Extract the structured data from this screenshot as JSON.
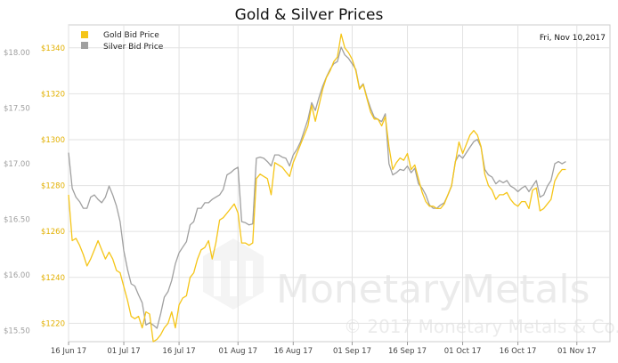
{
  "chart_data": {
    "type": "line",
    "title": "Gold & Silver Prices",
    "date_label": "Fri, Nov 10,2017",
    "watermark": {
      "brand": "MonetaryMetals",
      "copyright": "© 2017 Monetary Metals & Co."
    },
    "legend": {
      "placement": "top-left"
    },
    "x_ticks": [
      "16 Jun 17",
      "01 Jul 17",
      "16 Jul 17",
      "01 Aug 17",
      "16 Aug 17",
      "01 Sep 17",
      "16 Sep 17",
      "01 Oct 17",
      "16 Oct 17",
      "01 Nov 17"
    ],
    "x_tick_days": [
      0,
      15,
      30,
      46,
      61,
      77,
      92,
      107,
      122,
      138
    ],
    "xlim_days": [
      0,
      147
    ],
    "grid": true,
    "series": [
      {
        "name": "Gold Bid Price",
        "axis": "left",
        "color": "#f5c518",
        "ylim": [
          1212,
          1350
        ],
        "y_ticks": [
          "$1220",
          "$1240",
          "$1260",
          "$1280",
          "$1300",
          "$1320",
          "$1340"
        ],
        "y_tick_values": [
          1220,
          1240,
          1260,
          1280,
          1300,
          1320,
          1340
        ],
        "points": [
          [
            0,
            1276
          ],
          [
            1,
            1256
          ],
          [
            2,
            1257
          ],
          [
            3,
            1254
          ],
          [
            4,
            1250
          ],
          [
            5,
            1245
          ],
          [
            6,
            1248
          ],
          [
            7,
            1252
          ],
          [
            8,
            1256
          ],
          [
            9,
            1252
          ],
          [
            10,
            1248
          ],
          [
            11,
            1251
          ],
          [
            12,
            1248
          ],
          [
            13,
            1243
          ],
          [
            14,
            1242
          ],
          [
            15,
            1236
          ],
          [
            16,
            1230
          ],
          [
            17,
            1223
          ],
          [
            18,
            1222
          ],
          [
            19,
            1223
          ],
          [
            20,
            1218
          ],
          [
            21,
            1225
          ],
          [
            22,
            1224
          ],
          [
            23,
            1212
          ],
          [
            24,
            1213
          ],
          [
            25,
            1215
          ],
          [
            26,
            1218
          ],
          [
            27,
            1220
          ],
          [
            28,
            1225
          ],
          [
            29,
            1218
          ],
          [
            30,
            1228
          ],
          [
            31,
            1231
          ],
          [
            32,
            1232
          ],
          [
            33,
            1240
          ],
          [
            34,
            1242
          ],
          [
            35,
            1248
          ],
          [
            36,
            1252
          ],
          [
            37,
            1253
          ],
          [
            38,
            1256
          ],
          [
            39,
            1248
          ],
          [
            40,
            1255
          ],
          [
            41,
            1265
          ],
          [
            42,
            1266
          ],
          [
            43,
            1268
          ],
          [
            44,
            1270
          ],
          [
            45,
            1272
          ],
          [
            46,
            1268
          ],
          [
            47,
            1255
          ],
          [
            48,
            1255
          ],
          [
            49,
            1254
          ],
          [
            50,
            1255
          ],
          [
            51,
            1283
          ],
          [
            52,
            1285
          ],
          [
            53,
            1284
          ],
          [
            54,
            1283
          ],
          [
            55,
            1276
          ],
          [
            56,
            1290
          ],
          [
            57,
            1289
          ],
          [
            58,
            1288
          ],
          [
            59,
            1286
          ],
          [
            60,
            1284
          ],
          [
            61,
            1290
          ],
          [
            62,
            1294
          ],
          [
            63,
            1298
          ],
          [
            64,
            1302
          ],
          [
            65,
            1306
          ],
          [
            66,
            1315
          ],
          [
            67,
            1308
          ],
          [
            68,
            1315
          ],
          [
            69,
            1322
          ],
          [
            70,
            1327
          ],
          [
            71,
            1330
          ],
          [
            72,
            1334
          ],
          [
            73,
            1336
          ],
          [
            74,
            1346
          ],
          [
            75,
            1340
          ],
          [
            76,
            1338
          ],
          [
            77,
            1335
          ],
          [
            78,
            1330
          ],
          [
            79,
            1322
          ],
          [
            80,
            1324
          ],
          [
            81,
            1318
          ],
          [
            82,
            1312
          ],
          [
            83,
            1309
          ],
          [
            84,
            1309
          ],
          [
            85,
            1306
          ],
          [
            86,
            1310
          ],
          [
            87,
            1297
          ],
          [
            88,
            1287
          ],
          [
            89,
            1290
          ],
          [
            90,
            1292
          ],
          [
            91,
            1291
          ],
          [
            92,
            1294
          ],
          [
            93,
            1287
          ],
          [
            94,
            1289
          ],
          [
            95,
            1283
          ],
          [
            96,
            1277
          ],
          [
            97,
            1273
          ],
          [
            98,
            1271
          ],
          [
            99,
            1271
          ],
          [
            100,
            1270
          ],
          [
            101,
            1270
          ],
          [
            102,
            1272
          ],
          [
            103,
            1276
          ],
          [
            104,
            1280
          ],
          [
            105,
            1290
          ],
          [
            106,
            1299
          ],
          [
            107,
            1294
          ],
          [
            108,
            1298
          ],
          [
            109,
            1302
          ],
          [
            110,
            1304
          ],
          [
            111,
            1302
          ],
          [
            112,
            1297
          ],
          [
            113,
            1285
          ],
          [
            114,
            1280
          ],
          [
            115,
            1278
          ],
          [
            116,
            1274
          ],
          [
            117,
            1276
          ],
          [
            118,
            1276
          ],
          [
            119,
            1277
          ],
          [
            120,
            1274
          ],
          [
            121,
            1272
          ],
          [
            122,
            1271
          ],
          [
            123,
            1273
          ],
          [
            124,
            1273
          ],
          [
            125,
            1270
          ],
          [
            126,
            1278
          ],
          [
            127,
            1279
          ],
          [
            128,
            1269
          ],
          [
            129,
            1270
          ],
          [
            130,
            1272
          ],
          [
            131,
            1274
          ],
          [
            132,
            1282
          ],
          [
            133,
            1285
          ],
          [
            134,
            1287
          ],
          [
            135,
            1287
          ]
        ]
      },
      {
        "name": "Silver Bid Price",
        "axis": "right",
        "color": "#a0a0a0",
        "ylim": [
          15.4,
          18.25
        ],
        "y_ticks": [
          "$15.50",
          "$16.00",
          "$16.50",
          "$17.00",
          "$17.50",
          "$18.00"
        ],
        "y_tick_values": [
          15.5,
          16.0,
          16.5,
          17.0,
          17.5,
          18.0
        ],
        "points": [
          [
            0,
            17.1
          ],
          [
            1,
            16.78
          ],
          [
            2,
            16.7
          ],
          [
            3,
            16.66
          ],
          [
            4,
            16.6
          ],
          [
            5,
            16.6
          ],
          [
            6,
            16.7
          ],
          [
            7,
            16.72
          ],
          [
            8,
            16.68
          ],
          [
            9,
            16.65
          ],
          [
            10,
            16.7
          ],
          [
            11,
            16.8
          ],
          [
            12,
            16.72
          ],
          [
            13,
            16.62
          ],
          [
            14,
            16.48
          ],
          [
            15,
            16.22
          ],
          [
            16,
            16.05
          ],
          [
            17,
            15.92
          ],
          [
            18,
            15.9
          ],
          [
            19,
            15.82
          ],
          [
            20,
            15.75
          ],
          [
            21,
            15.55
          ],
          [
            22,
            15.57
          ],
          [
            23,
            15.55
          ],
          [
            24,
            15.52
          ],
          [
            25,
            15.65
          ],
          [
            26,
            15.8
          ],
          [
            27,
            15.85
          ],
          [
            28,
            15.95
          ],
          [
            29,
            16.1
          ],
          [
            30,
            16.2
          ],
          [
            31,
            16.25
          ],
          [
            32,
            16.3
          ],
          [
            33,
            16.45
          ],
          [
            34,
            16.48
          ],
          [
            35,
            16.6
          ],
          [
            36,
            16.6
          ],
          [
            37,
            16.65
          ],
          [
            38,
            16.65
          ],
          [
            39,
            16.68
          ],
          [
            40,
            16.7
          ],
          [
            41,
            16.72
          ],
          [
            42,
            16.77
          ],
          [
            43,
            16.9
          ],
          [
            44,
            16.92
          ],
          [
            45,
            16.95
          ],
          [
            46,
            16.97
          ],
          [
            47,
            16.48
          ],
          [
            48,
            16.47
          ],
          [
            49,
            16.45
          ],
          [
            50,
            16.46
          ],
          [
            51,
            17.05
          ],
          [
            52,
            17.06
          ],
          [
            53,
            17.05
          ],
          [
            54,
            17.02
          ],
          [
            55,
            16.98
          ],
          [
            56,
            17.08
          ],
          [
            57,
            17.08
          ],
          [
            58,
            17.06
          ],
          [
            59,
            17.05
          ],
          [
            60,
            16.98
          ],
          [
            61,
            17.08
          ],
          [
            62,
            17.13
          ],
          [
            63,
            17.2
          ],
          [
            64,
            17.3
          ],
          [
            65,
            17.4
          ],
          [
            66,
            17.55
          ],
          [
            67,
            17.48
          ],
          [
            68,
            17.6
          ],
          [
            69,
            17.7
          ],
          [
            70,
            17.78
          ],
          [
            71,
            17.85
          ],
          [
            72,
            17.9
          ],
          [
            73,
            17.92
          ],
          [
            74,
            18.05
          ],
          [
            75,
            17.98
          ],
          [
            76,
            17.95
          ],
          [
            77,
            17.9
          ],
          [
            78,
            17.85
          ],
          [
            79,
            17.68
          ],
          [
            80,
            17.72
          ],
          [
            81,
            17.6
          ],
          [
            82,
            17.5
          ],
          [
            83,
            17.42
          ],
          [
            84,
            17.4
          ],
          [
            85,
            17.38
          ],
          [
            86,
            17.45
          ],
          [
            87,
            17.0
          ],
          [
            88,
            16.9
          ],
          [
            89,
            16.92
          ],
          [
            90,
            16.95
          ],
          [
            91,
            16.94
          ],
          [
            92,
            16.98
          ],
          [
            93,
            16.92
          ],
          [
            94,
            16.96
          ],
          [
            95,
            16.82
          ],
          [
            96,
            16.78
          ],
          [
            97,
            16.72
          ],
          [
            98,
            16.63
          ],
          [
            99,
            16.6
          ],
          [
            100,
            16.6
          ],
          [
            101,
            16.63
          ],
          [
            102,
            16.65
          ],
          [
            103,
            16.72
          ],
          [
            104,
            16.8
          ],
          [
            105,
            17.02
          ],
          [
            106,
            17.08
          ],
          [
            107,
            17.05
          ],
          [
            108,
            17.1
          ],
          [
            109,
            17.15
          ],
          [
            110,
            17.2
          ],
          [
            111,
            17.22
          ],
          [
            112,
            17.15
          ],
          [
            113,
            16.95
          ],
          [
            114,
            16.9
          ],
          [
            115,
            16.88
          ],
          [
            116,
            16.82
          ],
          [
            117,
            16.85
          ],
          [
            118,
            16.83
          ],
          [
            119,
            16.85
          ],
          [
            120,
            16.8
          ],
          [
            121,
            16.78
          ],
          [
            122,
            16.75
          ],
          [
            123,
            16.78
          ],
          [
            124,
            16.8
          ],
          [
            125,
            16.75
          ],
          [
            126,
            16.8
          ],
          [
            127,
            16.85
          ],
          [
            128,
            16.7
          ],
          [
            129,
            16.72
          ],
          [
            130,
            16.8
          ],
          [
            131,
            16.85
          ],
          [
            132,
            17.0
          ],
          [
            133,
            17.02
          ],
          [
            134,
            17.0
          ],
          [
            135,
            17.02
          ]
        ]
      }
    ]
  }
}
